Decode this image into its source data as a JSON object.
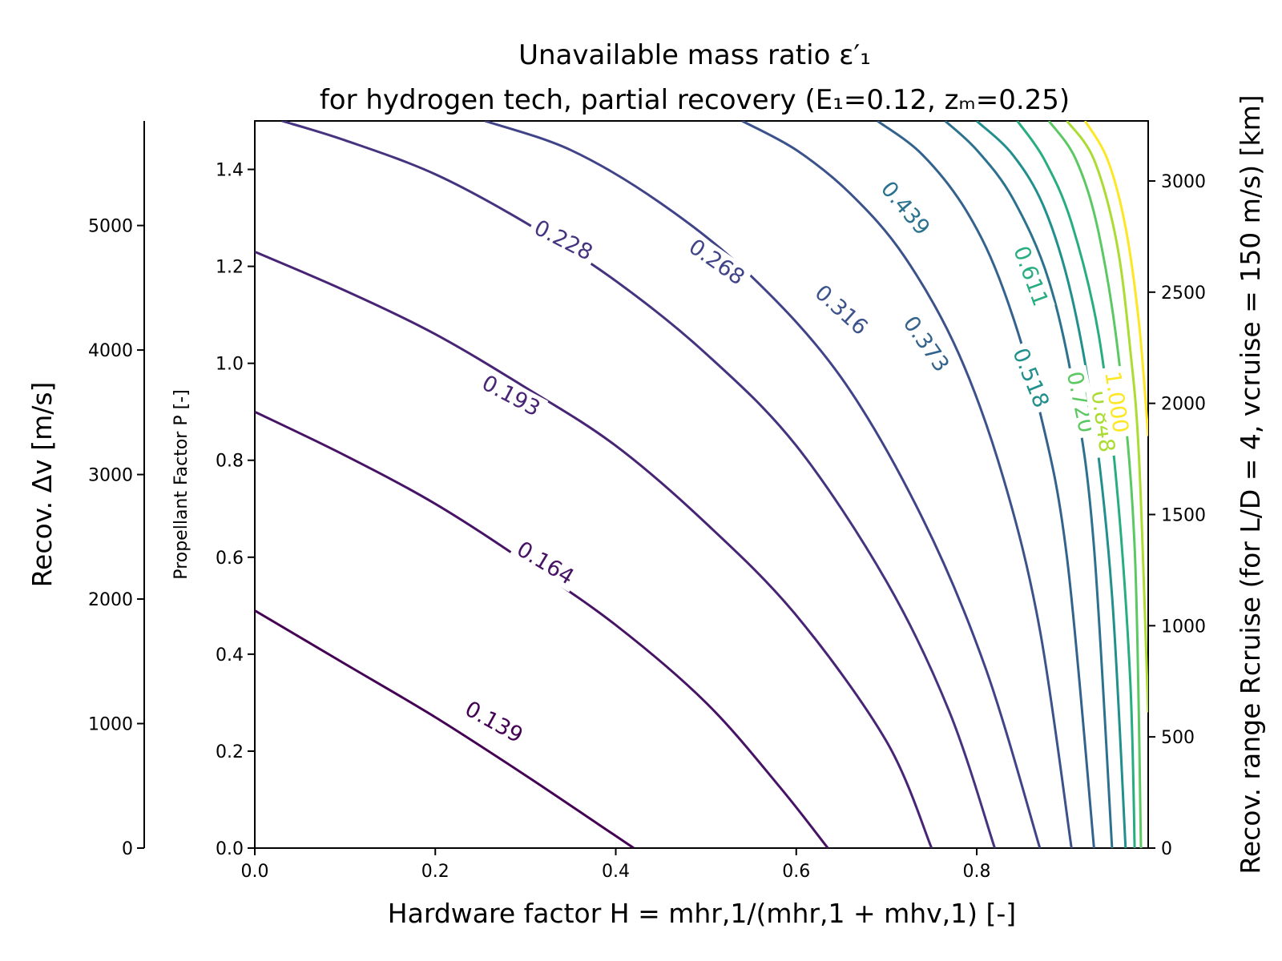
{
  "chart_data": {
    "type": "contour",
    "title_line1": "Unavailable mass ratio ε′₁",
    "title_line2": "for hydrogen tech, partial recovery (E₁=0.12, zₘ=0.25)",
    "xlabel": "Hardware factor H = mhr,1/(mhr,1 + mhv,1) [-]",
    "ylabel": "Propellant Factor P [-]",
    "ylabel_left": "Recov. Δv [m/s]",
    "ylabel_right": "Recov. range Rcruise (for L/D = 4, vcruise = 150 m/s) [km]",
    "xlim": [
      0,
      0.99
    ],
    "ylim": [
      0,
      1.5
    ],
    "x_ticks": [
      "0.0",
      "0.2",
      "0.4",
      "0.6",
      "0.8"
    ],
    "y_ticks": [
      "0.0",
      "0.2",
      "0.4",
      "0.6",
      "0.8",
      "1.0",
      "1.2",
      "1.4"
    ],
    "left_ticks": [
      "0",
      "1000",
      "2000",
      "3000",
      "4000",
      "5000"
    ],
    "right_ticks": [
      "0",
      "500",
      "1000",
      "1500",
      "2000",
      "2500",
      "3000"
    ],
    "grid": false,
    "levels": [
      {
        "label": "0.139",
        "value": 0.139,
        "color": "#440154",
        "points": [
          [
            0,
            0.49
          ],
          [
            0.1,
            0.38
          ],
          [
            0.2,
            0.27
          ],
          [
            0.3,
            0.15
          ],
          [
            0.38,
            0.05
          ],
          [
            0.42,
            0.0
          ]
        ]
      },
      {
        "label": "0.164",
        "value": 0.164,
        "color": "#471365",
        "points": [
          [
            0,
            0.9
          ],
          [
            0.1,
            0.81
          ],
          [
            0.2,
            0.71
          ],
          [
            0.3,
            0.59
          ],
          [
            0.4,
            0.46
          ],
          [
            0.5,
            0.3
          ],
          [
            0.58,
            0.13
          ],
          [
            0.635,
            0.0
          ]
        ]
      },
      {
        "label": "0.193",
        "value": 0.193,
        "color": "#482475",
        "points": [
          [
            0,
            1.23
          ],
          [
            0.1,
            1.15
          ],
          [
            0.2,
            1.06
          ],
          [
            0.3,
            0.95
          ],
          [
            0.4,
            0.83
          ],
          [
            0.5,
            0.67
          ],
          [
            0.6,
            0.48
          ],
          [
            0.7,
            0.22
          ],
          [
            0.75,
            0.0
          ]
        ]
      },
      {
        "label": "0.228",
        "value": 0.228,
        "color": "#46337f",
        "points": [
          [
            0.03,
            1.5
          ],
          [
            0.1,
            1.46
          ],
          [
            0.2,
            1.39
          ],
          [
            0.3,
            1.29
          ],
          [
            0.4,
            1.17
          ],
          [
            0.5,
            1.02
          ],
          [
            0.6,
            0.83
          ],
          [
            0.7,
            0.55
          ],
          [
            0.77,
            0.28
          ],
          [
            0.82,
            0.0
          ]
        ]
      },
      {
        "label": "0.268",
        "value": 0.268,
        "color": "#404388",
        "points": [
          [
            0.255,
            1.5
          ],
          [
            0.35,
            1.44
          ],
          [
            0.45,
            1.33
          ],
          [
            0.55,
            1.18
          ],
          [
            0.65,
            0.97
          ],
          [
            0.74,
            0.68
          ],
          [
            0.81,
            0.37
          ],
          [
            0.87,
            0.0
          ]
        ]
      },
      {
        "label": "0.316",
        "value": 0.316,
        "color": "#3b528b",
        "points": [
          [
            0.54,
            1.5
          ],
          [
            0.6,
            1.44
          ],
          [
            0.66,
            1.35
          ],
          [
            0.72,
            1.22
          ],
          [
            0.78,
            1.02
          ],
          [
            0.83,
            0.76
          ],
          [
            0.87,
            0.45
          ],
          [
            0.905,
            0.0
          ]
        ]
      },
      {
        "label": "0.373",
        "value": 0.373,
        "color": "#33638d",
        "points": [
          [
            0.69,
            1.5
          ],
          [
            0.74,
            1.43
          ],
          [
            0.79,
            1.31
          ],
          [
            0.83,
            1.15
          ],
          [
            0.87,
            0.9
          ],
          [
            0.9,
            0.6
          ],
          [
            0.93,
            0.0
          ]
        ]
      },
      {
        "label": "0.439",
        "value": 0.439,
        "color": "#2c728e",
        "points": [
          [
            0.765,
            1.5
          ],
          [
            0.8,
            1.44
          ],
          [
            0.84,
            1.34
          ],
          [
            0.88,
            1.17
          ],
          [
            0.91,
            0.92
          ],
          [
            0.93,
            0.62
          ],
          [
            0.95,
            0.0
          ]
        ]
      },
      {
        "label": "0.518",
        "value": 0.518,
        "color": "#21908d",
        "points": [
          [
            0.8,
            1.5
          ],
          [
            0.84,
            1.43
          ],
          [
            0.875,
            1.32
          ],
          [
            0.905,
            1.14
          ],
          [
            0.93,
            0.88
          ],
          [
            0.95,
            0.52
          ],
          [
            0.965,
            0.0
          ]
        ]
      },
      {
        "label": "0.611",
        "value": 0.611,
        "color": "#27ad81",
        "points": [
          [
            0.845,
            1.5
          ],
          [
            0.875,
            1.42
          ],
          [
            0.905,
            1.29
          ],
          [
            0.935,
            1.06
          ],
          [
            0.955,
            0.75
          ],
          [
            0.97,
            0.35
          ],
          [
            0.975,
            0.0
          ]
        ]
      },
      {
        "label": "0.720",
        "value": 0.72,
        "color": "#5cc863",
        "points": [
          [
            0.88,
            1.5
          ],
          [
            0.91,
            1.42
          ],
          [
            0.935,
            1.27
          ],
          [
            0.958,
            1.0
          ],
          [
            0.975,
            0.62
          ],
          [
            0.982,
            0.0
          ]
        ]
      },
      {
        "label": "0.848",
        "value": 0.848,
        "color": "#aadc32",
        "points": [
          [
            0.9,
            1.5
          ],
          [
            0.93,
            1.42
          ],
          [
            0.955,
            1.25
          ],
          [
            0.97,
            1.03
          ],
          [
            0.98,
            0.8
          ],
          [
            0.99,
            0.28
          ]
        ]
      },
      {
        "label": "1.000",
        "value": 1.0,
        "color": "#fde725",
        "points": [
          [
            0.92,
            1.5
          ],
          [
            0.945,
            1.42
          ],
          [
            0.965,
            1.28
          ],
          [
            0.98,
            1.08
          ],
          [
            0.99,
            0.85
          ]
        ]
      }
    ],
    "label_positions": [
      {
        "label": "0.139",
        "x": 0.265,
        "y": 0.26,
        "angle": 29
      },
      {
        "label": "0.164",
        "x": 0.322,
        "y": 0.588,
        "angle": 31
      },
      {
        "label": "0.193",
        "x": 0.284,
        "y": 0.933,
        "angle": 28
      },
      {
        "label": "0.228",
        "x": 0.342,
        "y": 1.254,
        "angle": 27
      },
      {
        "label": "0.268",
        "x": 0.512,
        "y": 1.209,
        "angle": 35
      },
      {
        "label": "0.316",
        "x": 0.65,
        "y": 1.11,
        "angle": 42
      },
      {
        "label": "0.373",
        "x": 0.744,
        "y": 1.04,
        "angle": 55
      },
      {
        "label": "0.439",
        "x": 0.721,
        "y": 1.32,
        "angle": 50
      },
      {
        "label": "0.518",
        "x": 0.86,
        "y": 0.97,
        "angle": 68
      },
      {
        "label": "0.611",
        "x": 0.86,
        "y": 1.18,
        "angle": 70
      },
      {
        "label": "0.720",
        "x": 0.915,
        "y": 0.92,
        "angle": 78
      },
      {
        "label": "0.848",
        "x": 0.94,
        "y": 0.88,
        "angle": 82
      },
      {
        "label": "1.000",
        "x": 0.955,
        "y": 0.92,
        "angle": 82
      }
    ]
  }
}
